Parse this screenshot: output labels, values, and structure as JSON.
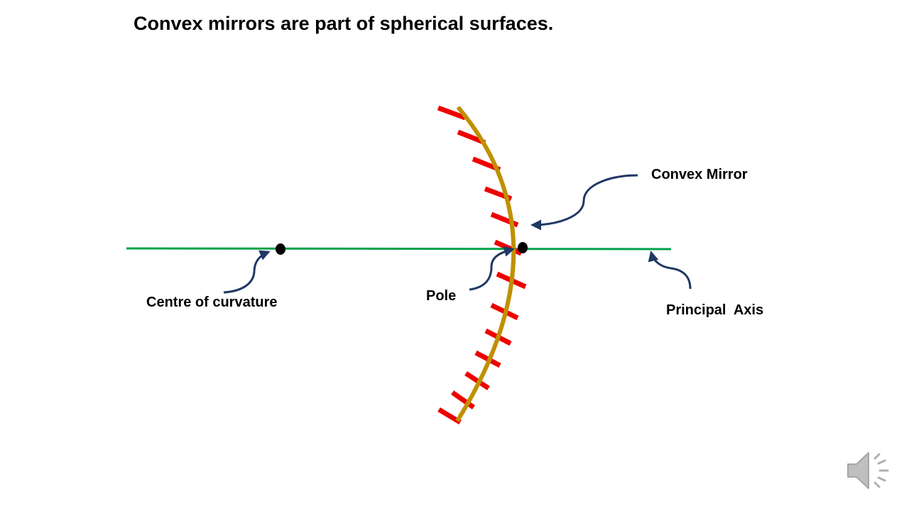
{
  "slide": {
    "title": "Convex mirrors are part of spherical surfaces."
  },
  "labels": {
    "convex_mirror": "Convex Mirror",
    "centre_of_curvature": "Centre of curvature",
    "pole": "Pole",
    "principal_axis": "Principal  Axis"
  },
  "colors": {
    "mirror": "#BF9000",
    "hatch": "#EE0000",
    "axis": "#00A14B",
    "arrow": "#1F3864",
    "point": "#000000"
  },
  "icons": {
    "audio": "speaker-icon"
  }
}
